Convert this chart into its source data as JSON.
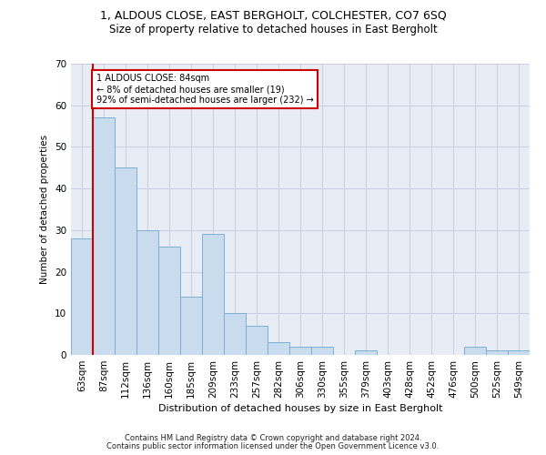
{
  "title1": "1, ALDOUS CLOSE, EAST BERGHOLT, COLCHESTER, CO7 6SQ",
  "title2": "Size of property relative to detached houses in East Bergholt",
  "xlabel": "Distribution of detached houses by size in East Bergholt",
  "ylabel": "Number of detached properties",
  "categories": [
    "63sqm",
    "87sqm",
    "112sqm",
    "136sqm",
    "160sqm",
    "185sqm",
    "209sqm",
    "233sqm",
    "257sqm",
    "282sqm",
    "306sqm",
    "330sqm",
    "355sqm",
    "379sqm",
    "403sqm",
    "428sqm",
    "452sqm",
    "476sqm",
    "500sqm",
    "525sqm",
    "549sqm"
  ],
  "values": [
    28,
    57,
    45,
    30,
    26,
    14,
    29,
    10,
    7,
    3,
    2,
    2,
    0,
    1,
    0,
    0,
    0,
    0,
    2,
    1,
    1
  ],
  "bar_color": "#c9dcee",
  "bar_edge_color": "#7aafd4",
  "grid_color": "#c8cfe0",
  "bg_color": "#e8edf5",
  "annotation_text": "1 ALDOUS CLOSE: 84sqm\n← 8% of detached houses are smaller (19)\n92% of semi-detached houses are larger (232) →",
  "vline_color": "#cc0000",
  "annotation_box_edge": "#cc0000",
  "ylim": [
    0,
    70
  ],
  "yticks": [
    0,
    10,
    20,
    30,
    40,
    50,
    60,
    70
  ],
  "footer1": "Contains HM Land Registry data © Crown copyright and database right 2024.",
  "footer2": "Contains public sector information licensed under the Open Government Licence v3.0."
}
